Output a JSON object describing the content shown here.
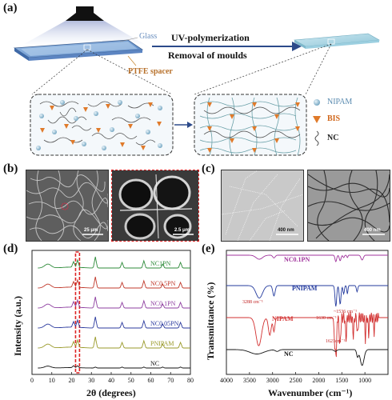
{
  "panels": {
    "a": "(a)",
    "b": "(b)",
    "c": "(c)",
    "d": "(d)",
    "e": "(e)"
  },
  "schematic": {
    "glass_label": "Glass",
    "spacer_label": "PTFE spacer",
    "process_line1": "UV-polymerization",
    "process_line2": "Removal of moulds",
    "legend": [
      {
        "symbol": "sphere",
        "label": "NIPAM",
        "color": "#6fa3c0"
      },
      {
        "symbol": "triangle",
        "label": "BIS",
        "color": "#e07a2a"
      },
      {
        "symbol": "wavy",
        "label": "NC",
        "color": "#555555"
      }
    ]
  },
  "micrographs": {
    "b_left_scale": "25 μm",
    "b_right_scale": "2.5 μm",
    "c_left_scale": "400 nm",
    "c_right_scale": "400 nm"
  },
  "chart_data": [
    {
      "type": "line",
      "panel": "d",
      "xlabel": "2θ (degrees)",
      "ylabel": "Intensity (a.u.)",
      "xlim": [
        0,
        80
      ],
      "xticks": [
        0,
        10,
        20,
        30,
        40,
        50,
        60,
        70,
        80
      ],
      "highlight_band": [
        22,
        24
      ],
      "series": [
        {
          "name": "NC1PN",
          "color": "#2e8b3a"
        },
        {
          "name": "NC0.5PN",
          "color": "#c0392b"
        },
        {
          "name": "NC0.1PN",
          "color": "#8e3fa0"
        },
        {
          "name": "NC0.05PN",
          "color": "#2b3a9e"
        },
        {
          "name": "PNIPAM",
          "color": "#9a9a2a"
        },
        {
          "name": "NC",
          "color": "#111111"
        }
      ],
      "peaks": [
        8,
        21,
        23,
        32,
        45.5,
        56.5,
        66,
        75
      ]
    },
    {
      "type": "line",
      "panel": "e",
      "xlabel": "Wavenumber (cm⁻¹)",
      "ylabel": "Transmittance (%)",
      "xlim": [
        4000,
        500
      ],
      "xticks": [
        4000,
        3500,
        3000,
        2500,
        2000,
        1500,
        1000
      ],
      "series": [
        {
          "name": "NC0.1PN",
          "color": "#a0339c"
        },
        {
          "name": "PNIPAM",
          "color": "#233a9e"
        },
        {
          "name": "NIPAM",
          "color": "#d23030"
        },
        {
          "name": "NC",
          "color": "#111111"
        }
      ],
      "annotations": [
        "3288 cm⁻¹",
        "~1536 cm⁻¹",
        "1630 cm⁻¹",
        "1621cm⁻¹"
      ]
    }
  ]
}
